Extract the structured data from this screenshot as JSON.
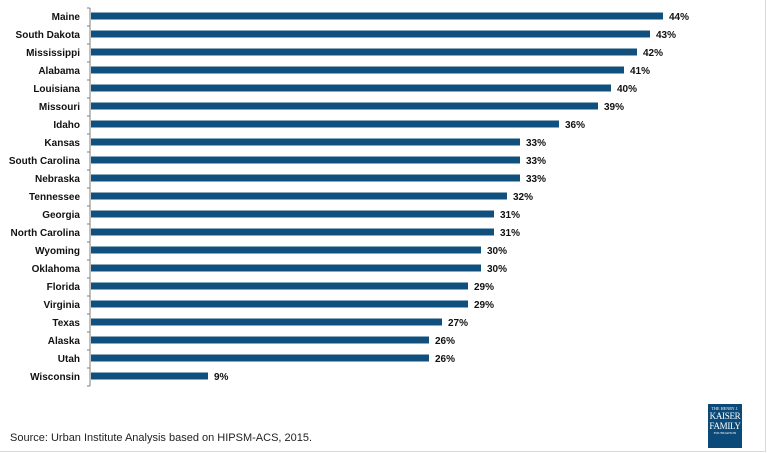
{
  "chart_data": {
    "type": "bar",
    "orientation": "horizontal",
    "categories": [
      "Maine",
      "South Dakota",
      "Mississippi",
      "Alabama",
      "Louisiana",
      "Missouri",
      "Idaho",
      "Kansas",
      "South Carolina",
      "Nebraska",
      "Tennessee",
      "Georgia",
      "North Carolina",
      "Wyoming",
      "Oklahoma",
      "Florida",
      "Virginia",
      "Texas",
      "Alaska",
      "Utah",
      "Wisconsin"
    ],
    "values": [
      44,
      43,
      42,
      41,
      40,
      39,
      36,
      33,
      33,
      33,
      32,
      31,
      31,
      30,
      30,
      29,
      29,
      27,
      26,
      26,
      9
    ],
    "data_labels": [
      "44%",
      "43%",
      "42%",
      "41%",
      "40%",
      "39%",
      "36%",
      "33%",
      "33%",
      "33%",
      "32%",
      "31%",
      "31%",
      "30%",
      "30%",
      "29%",
      "29%",
      "27%",
      "26%",
      "26%",
      "9%"
    ],
    "title": "",
    "xlabel": "",
    "ylabel": "",
    "xlim": [
      0,
      44
    ],
    "grid": false,
    "bar_color": "#10507e"
  },
  "footer": {
    "source": "Source: Urban Institute Analysis based on HIPSM-ACS, 2015."
  },
  "logo": {
    "line1": "THE HENRY J.",
    "line2": "KAISER",
    "line3": "FAMILY",
    "line4": "FOUNDATION"
  }
}
